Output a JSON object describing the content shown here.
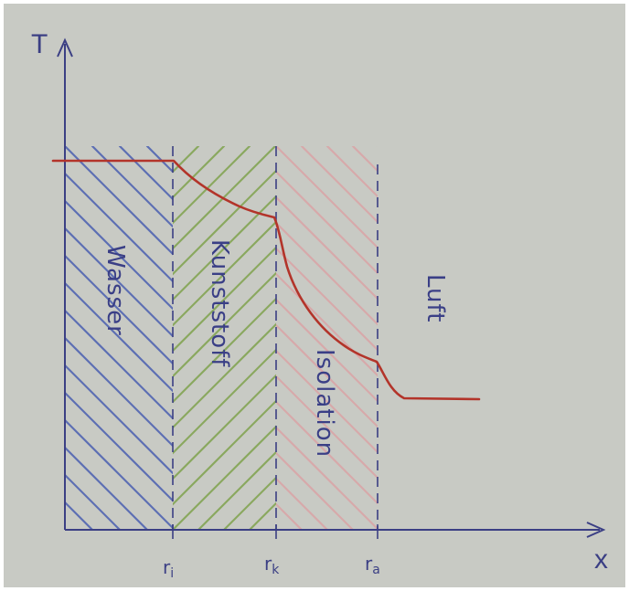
{
  "diagram": {
    "axes": {
      "y_label": "T",
      "x_label": "x"
    },
    "ticks": [
      "r_i",
      "r_k",
      "r_a"
    ],
    "tick_labels": {
      "r_i": "r",
      "r_i_sub": "i",
      "r_k": "r",
      "r_k_sub": "k",
      "r_a": "r",
      "r_a_sub": "a"
    },
    "regions": [
      {
        "name": "Wasser",
        "hatch_color": "#4a5fb0"
      },
      {
        "name": "Kunststoff",
        "hatch_color": "#7fa24e"
      },
      {
        "name": "Isolation",
        "hatch_color": "#d9a3a6"
      },
      {
        "name": "Luft",
        "hatch_color": null
      }
    ],
    "colors": {
      "paper": "#c9cbc6",
      "ink": "#3b3f84",
      "curve": "#b3342a"
    }
  }
}
